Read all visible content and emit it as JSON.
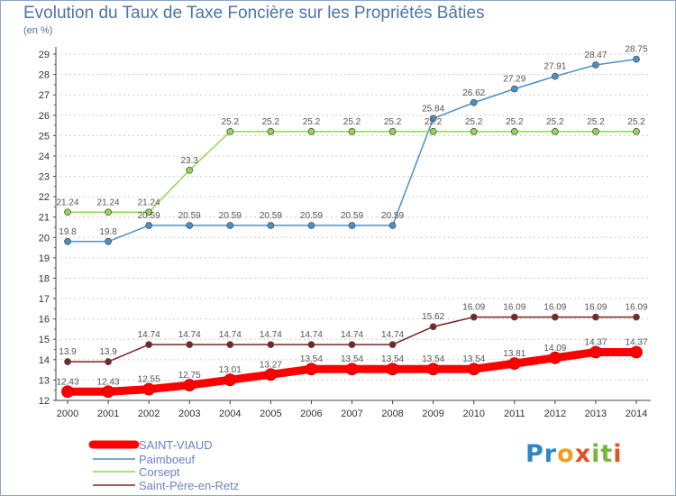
{
  "title": "Evolution du Taux de Taxe Foncière sur les Propriétés Bâties",
  "subtitle": "(en %)",
  "logo_text": "Proxiti",
  "colors": {
    "saint_viaud": "#ff0000",
    "paimboeuf": "#4a90c8",
    "corsept": "#8fd84f",
    "saint_pere": "#7a2424",
    "grid": "#cccccc",
    "frame": "#8aa6c8"
  },
  "chart_data": {
    "type": "line",
    "title": "Evolution du Taux de Taxe Foncière sur les Propriétés Bâties",
    "ylabel": "(en %)",
    "xlabel": "",
    "x": [
      "2000",
      "2001",
      "2002",
      "2003",
      "2004",
      "2005",
      "2006",
      "2007",
      "2008",
      "2009",
      "2010",
      "2011",
      "2012",
      "2013",
      "2014"
    ],
    "ylim": [
      12,
      29
    ],
    "yticks": [
      12,
      13,
      14,
      15,
      16,
      17,
      18,
      19,
      20,
      21,
      22,
      23,
      24,
      25,
      26,
      27,
      28,
      29
    ],
    "grid": "horizontal dashed",
    "legend_placement": "bottom-left",
    "series": [
      {
        "name": "SAINT-VIAUD",
        "values": [
          12.43,
          12.43,
          12.55,
          12.75,
          13.01,
          13.27,
          13.54,
          13.54,
          13.54,
          13.54,
          13.54,
          13.81,
          14.09,
          14.37,
          14.37
        ],
        "labels": [
          "12.43",
          "12.43",
          "12.55",
          "12.75",
          "13.01",
          "13.27",
          "13.54",
          "13.54",
          "13.54",
          "13.54",
          "13.54",
          "13.81",
          "14.09",
          "14.37",
          "14.37"
        ]
      },
      {
        "name": "Paimboeuf",
        "values": [
          19.8,
          19.8,
          20.59,
          20.59,
          20.59,
          20.59,
          20.59,
          20.59,
          20.59,
          25.84,
          26.62,
          27.29,
          27.91,
          28.47,
          28.75
        ],
        "labels": [
          "19.8",
          "19.8",
          "20.59",
          "20.59",
          "20.59",
          "20.59",
          "20.59",
          "20.59",
          "20.59",
          "25.84",
          "26.62",
          "27.29",
          "27.91",
          "28.47",
          "28.75"
        ]
      },
      {
        "name": "Corsept",
        "values": [
          21.24,
          21.24,
          21.24,
          23.3,
          25.2,
          25.2,
          25.2,
          25.2,
          25.2,
          25.2,
          25.2,
          25.2,
          25.2,
          25.2,
          25.2
        ],
        "labels": [
          "21.24",
          "21.24",
          "21.24",
          "23.3",
          "25.2",
          "25.2",
          "25.2",
          "25.2",
          "25.2",
          "25.2",
          "25.2",
          "25.2",
          "25.2",
          "25.2",
          "25.2"
        ]
      },
      {
        "name": "Saint-Père-en-Retz",
        "values": [
          13.9,
          13.9,
          14.74,
          14.74,
          14.74,
          14.74,
          14.74,
          14.74,
          14.74,
          15.62,
          16.09,
          16.09,
          16.09,
          16.09,
          16.09
        ],
        "labels": [
          "13.9",
          "13.9",
          "14.74",
          "14.74",
          "14.74",
          "14.74",
          "14.74",
          "14.74",
          "14.74",
          "15.62",
          "16.09",
          "16.09",
          "16.09",
          "16.09",
          "16.09"
        ]
      }
    ]
  }
}
